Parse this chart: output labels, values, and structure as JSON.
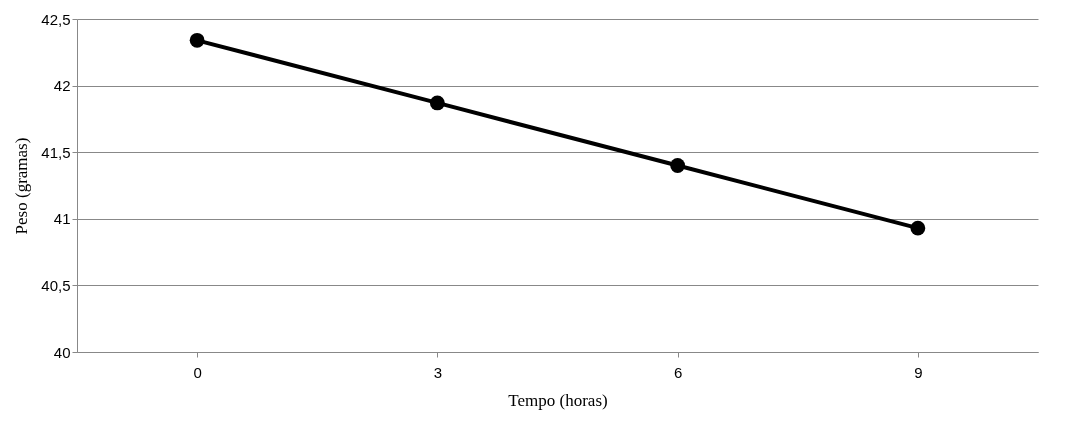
{
  "chart_data": {
    "type": "line",
    "xlabel": "Tempo (horas)",
    "ylabel": "Peso (gramas)",
    "categories": [
      "0",
      "3",
      "6",
      "9"
    ],
    "series": [
      {
        "color": "#000000",
        "values": [
          42.34,
          41.87,
          41.4,
          40.93
        ]
      }
    ],
    "ylim": [
      40,
      42.5
    ],
    "yticks": [
      40,
      {
        "value": 40.5,
        "label": "40,5"
      },
      42,
      {
        "value": 41.5,
        "label": "41,5"
      },
      41,
      {
        "value": 42.5,
        "label": "42,5"
      }
    ],
    "grid": "y",
    "marker": "circle",
    "line_style": "solid"
  }
}
